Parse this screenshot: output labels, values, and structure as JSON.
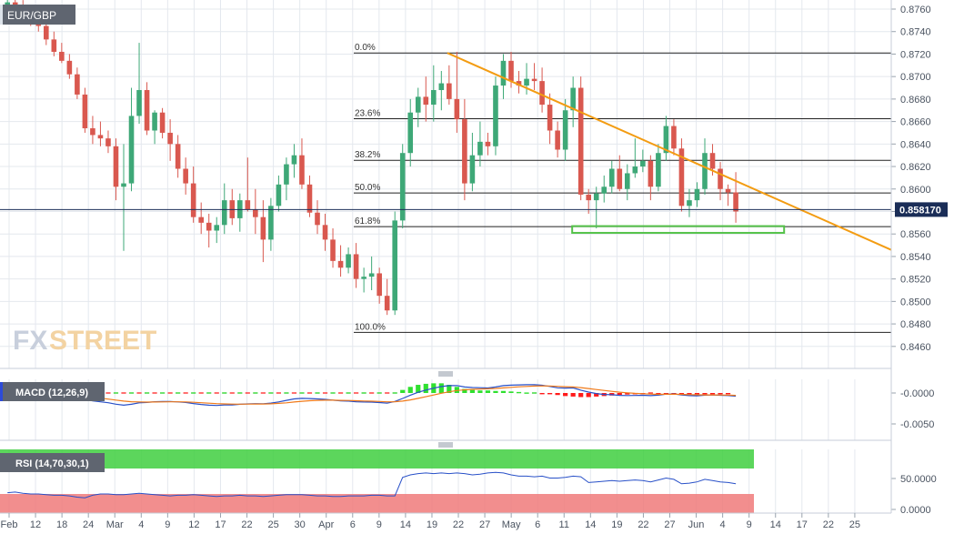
{
  "symbol": "EUR/GBP",
  "brand": {
    "name_a": "FX",
    "name_b": "STREET"
  },
  "last_price_label": "0.858170",
  "colors": {
    "up": "#3ea877",
    "down": "#d9584f",
    "trend": "#f39c12",
    "support": "#55c24a",
    "grid": "#e4e8ee",
    "macd_line": "#2850c8",
    "signal_line": "#f07a1a",
    "rsi_line": "#2850c8",
    "rsi_upper": "#3fcf3f",
    "rsi_lower": "#f07a7a"
  },
  "x_axis_labels": [
    "Feb",
    "12",
    "18",
    "24",
    "Mar",
    "4",
    "9",
    "12",
    "17",
    "22",
    "25",
    "30",
    "Apr",
    "6",
    "9",
    "14",
    "19",
    "22",
    "27",
    "May",
    "6",
    "11",
    "14",
    "19",
    "22",
    "27",
    "Jun",
    "4",
    "9",
    "14",
    "17",
    "22",
    "25"
  ],
  "price_axis_labels": [
    "0.8760",
    "0.8740",
    "0.8720",
    "0.8700",
    "0.8680",
    "0.8660",
    "0.8640",
    "0.8620",
    "0.8600",
    "0.8580",
    "0.8560",
    "0.8540",
    "0.8520",
    "0.8500",
    "0.8480",
    "0.8460"
  ],
  "fib_levels": [
    {
      "label": "0.0%",
      "price": 0.8721
    },
    {
      "label": "23.6%",
      "price": 0.86625
    },
    {
      "label": "38.2%",
      "price": 0.86255
    },
    {
      "label": "50.0%",
      "price": 0.85965
    },
    {
      "label": "61.8%",
      "price": 0.85665
    },
    {
      "label": "100.0%",
      "price": 0.84725
    }
  ],
  "macd": {
    "label": "MACD (12,26,9)",
    "axis_labels": [
      "-0.0000",
      "-0.0050"
    ]
  },
  "rsi": {
    "label": "RSI (14,70,30,1)",
    "axis_labels": [
      "50.0000",
      "0.0000"
    ]
  },
  "chart_data": {
    "type": "candlestick",
    "title": "EUR/GBP",
    "ylim": [
      0.845,
      0.8768
    ],
    "last_price": 0.85817,
    "candles": [
      [
        0.8762,
        0.877,
        0.8755,
        0.8766
      ],
      [
        0.8766,
        0.8772,
        0.876,
        0.8764
      ],
      [
        0.8764,
        0.8768,
        0.8752,
        0.8756
      ],
      [
        0.8756,
        0.876,
        0.8745,
        0.8748
      ],
      [
        0.8748,
        0.8755,
        0.874,
        0.8745
      ],
      [
        0.8745,
        0.875,
        0.8728,
        0.8733
      ],
      [
        0.8733,
        0.874,
        0.8718,
        0.8722
      ],
      [
        0.8722,
        0.873,
        0.8712,
        0.8714
      ],
      [
        0.8714,
        0.872,
        0.8698,
        0.8702
      ],
      [
        0.8702,
        0.8708,
        0.868,
        0.8684
      ],
      [
        0.8684,
        0.869,
        0.865,
        0.8654
      ],
      [
        0.8654,
        0.8665,
        0.864,
        0.8648
      ],
      [
        0.8648,
        0.866,
        0.8638,
        0.8645
      ],
      [
        0.8645,
        0.8652,
        0.8632,
        0.8638
      ],
      [
        0.8638,
        0.8645,
        0.859,
        0.8602
      ],
      [
        0.8602,
        0.864,
        0.8545,
        0.8605
      ],
      [
        0.8605,
        0.869,
        0.8598,
        0.8665
      ],
      [
        0.8665,
        0.873,
        0.8658,
        0.8688
      ],
      [
        0.8688,
        0.8695,
        0.8648,
        0.8652
      ],
      [
        0.8652,
        0.867,
        0.864,
        0.8668
      ],
      [
        0.8668,
        0.8672,
        0.8645,
        0.865
      ],
      [
        0.865,
        0.8662,
        0.8625,
        0.864
      ],
      [
        0.864,
        0.8648,
        0.861,
        0.8618
      ],
      [
        0.8618,
        0.8628,
        0.8595,
        0.8605
      ],
      [
        0.8605,
        0.862,
        0.857,
        0.8575
      ],
      [
        0.8575,
        0.8588,
        0.856,
        0.857
      ],
      [
        0.857,
        0.8578,
        0.8548,
        0.8563
      ],
      [
        0.8563,
        0.8575,
        0.8552,
        0.8568
      ],
      [
        0.8568,
        0.8605,
        0.856,
        0.859
      ],
      [
        0.859,
        0.86,
        0.8568,
        0.8574
      ],
      [
        0.8574,
        0.8596,
        0.8562,
        0.859
      ],
      [
        0.859,
        0.8628,
        0.858,
        0.8582
      ],
      [
        0.8582,
        0.86,
        0.856,
        0.8575
      ],
      [
        0.8575,
        0.859,
        0.8535,
        0.8555
      ],
      [
        0.8555,
        0.8592,
        0.8545,
        0.8585
      ],
      [
        0.8585,
        0.8612,
        0.858,
        0.8604
      ],
      [
        0.8604,
        0.8628,
        0.859,
        0.8622
      ],
      [
        0.8622,
        0.864,
        0.861,
        0.863
      ],
      [
        0.863,
        0.8645,
        0.86,
        0.8604
      ],
      [
        0.8604,
        0.8612,
        0.8575,
        0.8579
      ],
      [
        0.8579,
        0.859,
        0.856,
        0.8568
      ],
      [
        0.8568,
        0.8578,
        0.8545,
        0.8555
      ],
      [
        0.8555,
        0.8565,
        0.853,
        0.8536
      ],
      [
        0.8536,
        0.855,
        0.8522,
        0.853
      ],
      [
        0.853,
        0.8548,
        0.8525,
        0.8542
      ],
      [
        0.8542,
        0.8552,
        0.8512,
        0.852
      ],
      [
        0.852,
        0.853,
        0.8508,
        0.8522
      ],
      [
        0.8522,
        0.854,
        0.851,
        0.8525
      ],
      [
        0.8525,
        0.853,
        0.8498,
        0.8505
      ],
      [
        0.8505,
        0.852,
        0.8488,
        0.8492
      ],
      [
        0.8492,
        0.858,
        0.8488,
        0.8572
      ],
      [
        0.8572,
        0.864,
        0.8565,
        0.8632
      ],
      [
        0.8632,
        0.868,
        0.862,
        0.8668
      ],
      [
        0.8668,
        0.869,
        0.8655,
        0.8682
      ],
      [
        0.8682,
        0.87,
        0.866,
        0.8675
      ],
      [
        0.8675,
        0.871,
        0.866,
        0.8688
      ],
      [
        0.8688,
        0.8705,
        0.867,
        0.8694
      ],
      [
        0.8694,
        0.871,
        0.8675,
        0.868
      ],
      [
        0.868,
        0.8722,
        0.865,
        0.8662
      ],
      [
        0.8662,
        0.868,
        0.859,
        0.8605
      ],
      [
        0.8605,
        0.865,
        0.8598,
        0.863
      ],
      [
        0.863,
        0.866,
        0.862,
        0.8642
      ],
      [
        0.8642,
        0.865,
        0.863,
        0.8638
      ],
      [
        0.8638,
        0.87,
        0.863,
        0.8692
      ],
      [
        0.8692,
        0.872,
        0.868,
        0.8714
      ],
      [
        0.8714,
        0.8722,
        0.869,
        0.8696
      ],
      [
        0.8696,
        0.8705,
        0.8685,
        0.8692
      ],
      [
        0.8692,
        0.8712,
        0.8684,
        0.8698
      ],
      [
        0.8698,
        0.8712,
        0.8688,
        0.8696
      ],
      [
        0.8696,
        0.8708,
        0.8668,
        0.8675
      ],
      [
        0.8675,
        0.8685,
        0.864,
        0.8652
      ],
      [
        0.8652,
        0.866,
        0.8628,
        0.8635
      ],
      [
        0.8635,
        0.868,
        0.8625,
        0.867
      ],
      [
        0.867,
        0.87,
        0.8655,
        0.869
      ],
      [
        0.869,
        0.87,
        0.859,
        0.8595
      ],
      [
        0.8595,
        0.86,
        0.8578,
        0.859
      ],
      [
        0.859,
        0.8602,
        0.8565,
        0.8596
      ],
      [
        0.8596,
        0.8612,
        0.8588,
        0.8602
      ],
      [
        0.8602,
        0.8625,
        0.8596,
        0.8618
      ],
      [
        0.8618,
        0.863,
        0.8598,
        0.86
      ],
      [
        0.86,
        0.8622,
        0.859,
        0.8614
      ],
      [
        0.8614,
        0.8645,
        0.861,
        0.862
      ],
      [
        0.862,
        0.8635,
        0.8615,
        0.8625
      ],
      [
        0.8625,
        0.863,
        0.859,
        0.8602
      ],
      [
        0.8602,
        0.864,
        0.8598,
        0.8632
      ],
      [
        0.8632,
        0.8665,
        0.8625,
        0.8656
      ],
      [
        0.8656,
        0.8662,
        0.863,
        0.8636
      ],
      [
        0.8636,
        0.8645,
        0.858,
        0.8585
      ],
      [
        0.8585,
        0.86,
        0.8575,
        0.859
      ],
      [
        0.859,
        0.8606,
        0.8584,
        0.86
      ],
      [
        0.86,
        0.8645,
        0.8595,
        0.8632
      ],
      [
        0.8632,
        0.864,
        0.8612,
        0.8618
      ],
      [
        0.8618,
        0.8624,
        0.859,
        0.86
      ],
      [
        0.86,
        0.8604,
        0.8585,
        0.8597
      ],
      [
        0.8597,
        0.8615,
        0.857,
        0.858
      ]
    ],
    "trendline": [
      [
        57,
        0.8721
      ],
      [
        97,
        0.8598
      ]
    ],
    "support_zone": [
      0.8561,
      0.8567
    ],
    "macd_hist": [
      0,
      0,
      0,
      0,
      0,
      0,
      0,
      0,
      0,
      0,
      0,
      0,
      0,
      0,
      0,
      0,
      0,
      0,
      0,
      0,
      0,
      0,
      0,
      0,
      0,
      0,
      0,
      0,
      0,
      0,
      0,
      0,
      0,
      0,
      0,
      0,
      0,
      0,
      0,
      0,
      0,
      0,
      0,
      0,
      0,
      0,
      0,
      0,
      0,
      0,
      0,
      0.0006,
      0.0012,
      0.0016,
      0.0018,
      0.0019,
      0.0019,
      0.0016,
      0.0012,
      0.0008,
      0.0006,
      0.0005,
      0.0005,
      0.0004,
      0.0004,
      0.0003,
      0.0002,
      0.0001,
      0,
      -0.0001,
      -0.0002,
      -0.0004,
      -0.0006,
      -0.0007,
      -0.0008,
      -0.0008,
      -0.0007,
      -0.0006,
      -0.0005,
      -0.0004,
      -0.0003,
      -0.0002,
      -0.0001,
      0,
      -0.0001,
      -0.0001,
      -0.0002,
      -0.0002,
      -0.0002,
      -0.0001,
      -0.0001,
      -0.0001,
      -0.0001,
      -0.0001
    ],
    "rsi_values": [
      32,
      33,
      31,
      30,
      30,
      29,
      28,
      28,
      27,
      25,
      24,
      28,
      30,
      30,
      29,
      29,
      30,
      31,
      30,
      29,
      28,
      27,
      28,
      28,
      29,
      28,
      27,
      26,
      27,
      27,
      28,
      27,
      27,
      26,
      27,
      28,
      29,
      29,
      29,
      28,
      27,
      27,
      26,
      26,
      27,
      27,
      27,
      28,
      28,
      27,
      27,
      56,
      60,
      62,
      63,
      62,
      63,
      62,
      63,
      62,
      60,
      61,
      63,
      64,
      63,
      60,
      58,
      58,
      57,
      58,
      55,
      55,
      56,
      58,
      57,
      48,
      49,
      50,
      51,
      50,
      51,
      52,
      51,
      49,
      52,
      55,
      53,
      46,
      47,
      49,
      53,
      51,
      49,
      48,
      46
    ],
    "rsi_levels": [
      70,
      30
    ]
  }
}
